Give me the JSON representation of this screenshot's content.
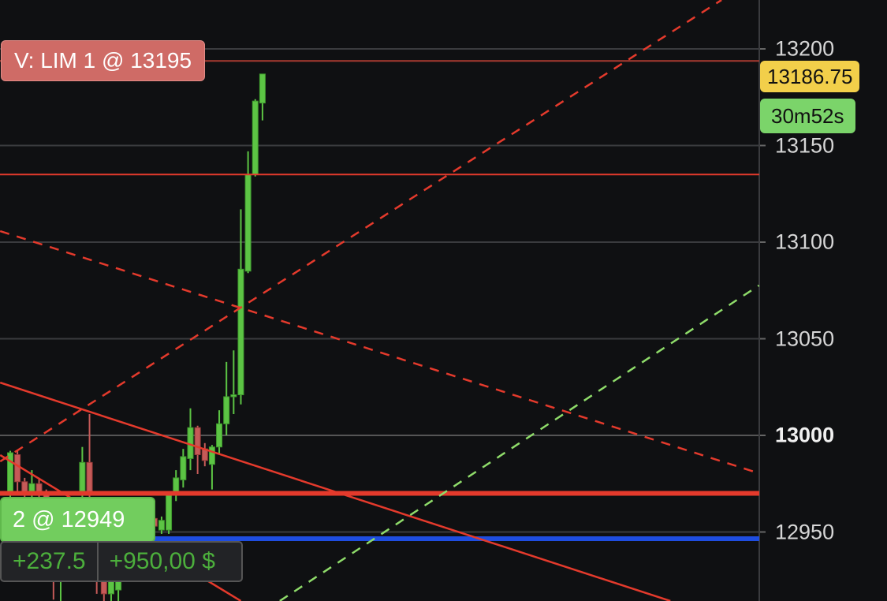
{
  "colors": {
    "background": "#0f1012",
    "up": "#5cc444",
    "down": "#c55a58",
    "grid": "#3a3b3e",
    "order_line": "#e43a2c",
    "position_line": "#1e4de0",
    "limit_line": "#a83a30",
    "current_price": "#f2cf4a",
    "timer": "#7bd46a"
  },
  "price_axis": {
    "ticks": [
      {
        "label": "13200",
        "value": 13200
      },
      {
        "label": "13150",
        "value": 13150
      },
      {
        "label": "13100",
        "value": 13100
      },
      {
        "label": "13050",
        "value": 13050
      },
      {
        "label": "13000",
        "value": 13000,
        "bold": true
      },
      {
        "label": "12950",
        "value": 12950
      }
    ]
  },
  "current_price": {
    "label": "13186.75",
    "value": 13186.75
  },
  "timer": {
    "label": "30m52s"
  },
  "limit_order": {
    "label": "V: LIM 1 @ 13195",
    "price": 13195
  },
  "stop_line": {
    "price": 13135
  },
  "support_line": {
    "price": 12970
  },
  "position": {
    "label": "2 @ 12949",
    "price": 12949,
    "points": "+237.5",
    "pnl": "+950,00 $"
  },
  "chart_data": {
    "type": "candlestick",
    "candles": [
      {
        "o": 12970,
        "h": 12992,
        "l": 12968,
        "c": 12991
      },
      {
        "o": 12990,
        "h": 12992,
        "l": 12970,
        "c": 12976
      },
      {
        "o": 12976,
        "h": 12978,
        "l": 12962,
        "c": 12970
      },
      {
        "o": 12970,
        "h": 12982,
        "l": 12968,
        "c": 12975
      },
      {
        "o": 12975,
        "h": 12978,
        "l": 12960,
        "c": 12969
      },
      {
        "o": 12969,
        "h": 12972,
        "l": 12945,
        "c": 12950
      },
      {
        "o": 12950,
        "h": 12955,
        "l": 12915,
        "c": 12925
      },
      {
        "o": 12925,
        "h": 12945,
        "l": 12914,
        "c": 12940
      },
      {
        "o": 12940,
        "h": 12950,
        "l": 12928,
        "c": 12935
      },
      {
        "o": 12935,
        "h": 12960,
        "l": 12930,
        "c": 12955
      },
      {
        "o": 12970,
        "h": 12994,
        "l": 12968,
        "c": 12986
      },
      {
        "o": 12986,
        "h": 13011,
        "l": 12965,
        "c": 12970
      },
      {
        "o": 12950,
        "h": 12955,
        "l": 12918,
        "c": 12925
      },
      {
        "o": 12925,
        "h": 12930,
        "l": 12914,
        "c": 12918
      },
      {
        "o": 12918,
        "h": 12935,
        "l": 12914,
        "c": 12930
      },
      {
        "o": 12920,
        "h": 12945,
        "l": 12914,
        "c": 12940
      },
      {
        "o": 12940,
        "h": 12955,
        "l": 12935,
        "c": 12950
      },
      {
        "o": 12950,
        "h": 12958,
        "l": 12945,
        "c": 12955
      },
      {
        "o": 12955,
        "h": 12958,
        "l": 12948,
        "c": 12952
      },
      {
        "o": 12952,
        "h": 12958,
        "l": 12948,
        "c": 12956
      },
      {
        "o": 12957,
        "h": 12960,
        "l": 12950,
        "c": 12953
      },
      {
        "o": 12951,
        "h": 12958,
        "l": 12949,
        "c": 12956
      },
      {
        "o": 12951,
        "h": 12971,
        "l": 12949,
        "c": 12971
      },
      {
        "o": 12971,
        "h": 12982,
        "l": 12966,
        "c": 12978
      },
      {
        "o": 12977,
        "h": 12993,
        "l": 12973,
        "c": 12989
      },
      {
        "o": 12988,
        "h": 13014,
        "l": 12982,
        "c": 13004
      },
      {
        "o": 13004,
        "h": 13005,
        "l": 12980,
        "c": 12990
      },
      {
        "o": 12993,
        "h": 12996,
        "l": 12984,
        "c": 12987
      },
      {
        "o": 12985,
        "h": 12995,
        "l": 12972,
        "c": 12994
      },
      {
        "o": 12994,
        "h": 13013,
        "l": 12990,
        "c": 13006
      },
      {
        "o": 13006,
        "h": 13038,
        "l": 13000,
        "c": 13020
      },
      {
        "o": 13020,
        "h": 13044,
        "l": 13011,
        "c": 13021
      },
      {
        "o": 13021,
        "h": 13117,
        "l": 13016,
        "c": 13086
      },
      {
        "o": 13085,
        "h": 13147,
        "l": 13084,
        "c": 13135
      },
      {
        "o": 13135,
        "h": 13174,
        "l": 13134,
        "c": 13173
      },
      {
        "o": 13172,
        "h": 13187,
        "l": 13163,
        "c": 13187
      }
    ],
    "trendlines": [
      {
        "style": "dashed",
        "color": "#e43a2c",
        "from": {
          "bar": -1.4,
          "price": 12986.5
        },
        "to": {
          "bar": 98.7,
          "price": 13225.3
        }
      },
      {
        "style": "dashed",
        "color": "#e43a2c",
        "from": {
          "bar": -1.4,
          "price": 13105.7
        },
        "to": {
          "bar": 103.9,
          "price": 12980.4
        }
      },
      {
        "style": "solid",
        "color": "#e43a2c",
        "from": {
          "bar": -1.4,
          "price": 13027.3
        },
        "to": {
          "bar": 91.6,
          "price": 12914.3
        }
      },
      {
        "style": "solid",
        "color": "#e43a2c",
        "from": {
          "bar": -1.4,
          "price": 12989.8
        },
        "to": {
          "bar": 32,
          "price": 12914.3
        }
      },
      {
        "style": "dashed",
        "color": "#8fdc6a",
        "from": {
          "bar": 37.4,
          "price": 12914.3
        },
        "to": {
          "bar": 103.9,
          "price": 13077.6
        }
      }
    ]
  }
}
